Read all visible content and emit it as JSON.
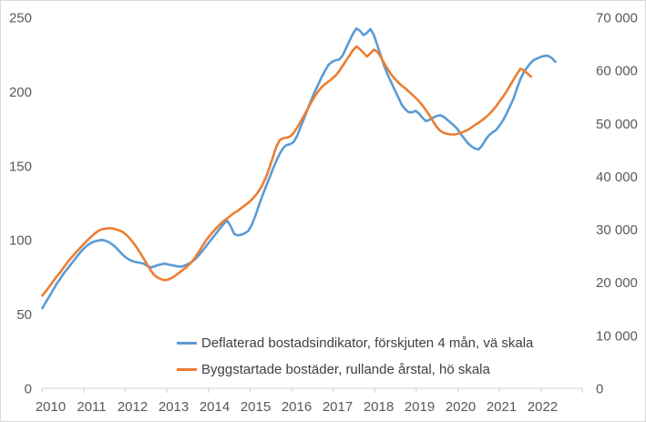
{
  "chart_data": {
    "type": "line",
    "title": "",
    "x_frequency": "monthly",
    "x_axis": {
      "year_labels": [
        "2010",
        "2011",
        "2012",
        "2013",
        "2014",
        "2015",
        "2016",
        "2017",
        "2018",
        "2019",
        "2020",
        "2021",
        "2022"
      ]
    },
    "left_axis": {
      "range": [
        0,
        250
      ],
      "tick_values": [
        0,
        50,
        100,
        150,
        200,
        250
      ],
      "tick_labels": [
        "0",
        "50",
        "100",
        "150",
        "200",
        "250"
      ]
    },
    "right_axis": {
      "range": [
        0,
        70000
      ],
      "tick_values": [
        0,
        10000,
        20000,
        30000,
        40000,
        50000,
        60000,
        70000
      ],
      "tick_labels": [
        "0",
        "10 000",
        "20 000",
        "30 000",
        "40 000",
        "50 000",
        "60 000",
        "70 000"
      ]
    },
    "grid": false,
    "legend_position": "bottom",
    "colors": {
      "series_blue": "#5B9BD5",
      "series_orange": "#ED7D31",
      "axis_text": "#595959",
      "legend_text": "#404040",
      "axis_line": "#D9D9D9",
      "background": "#FFFFFF",
      "border": "#D9D9D9"
    },
    "series": [
      {
        "name": "Deflaterad bostadsindikator, förskjuten 4 mån, vä skala",
        "axis": "left",
        "color": "#5B9BD5",
        "start": "2010-01",
        "end": "2022-04",
        "values": [
          54,
          58,
          62,
          66,
          70,
          73.5,
          77,
          80,
          83,
          86,
          89,
          92,
          94.5,
          96.5,
          98,
          99,
          99.5,
          100,
          99.5,
          98.5,
          97,
          95,
          92.5,
          90,
          88,
          86.5,
          85.5,
          85,
          84.5,
          84,
          82.5,
          81.5,
          82,
          83,
          83.5,
          84,
          83.5,
          83,
          82.5,
          82,
          82,
          83,
          84,
          85.5,
          87.5,
          90,
          93,
          96,
          99,
          102,
          105,
          108,
          111,
          113,
          109,
          104,
          103,
          103.5,
          104.5,
          106,
          110,
          116,
          123,
          129.5,
          135.5,
          141.5,
          147.5,
          153,
          158,
          162,
          164,
          164.5,
          166,
          170,
          176,
          182,
          188,
          194,
          199.5,
          204.5,
          209.5,
          214,
          218,
          220,
          221,
          221.5,
          224,
          229,
          234,
          239,
          242.5,
          241,
          238,
          239.5,
          242,
          238,
          231,
          224,
          217,
          211,
          206,
          201,
          196,
          191,
          188,
          186,
          186,
          187,
          185,
          182,
          180,
          181,
          182.5,
          183.5,
          184,
          183,
          181,
          179,
          177,
          174.5,
          171,
          168,
          165,
          163,
          161.5,
          161,
          163.5,
          167.5,
          170.5,
          172.5,
          174,
          177,
          180.5,
          185,
          190,
          195,
          202,
          208.5,
          213,
          216.5,
          219.5,
          221.5,
          222.5,
          223.5,
          224,
          224,
          222.5,
          220
        ]
      },
      {
        "name": "Byggstartade bostäder, rullande årstal, hö skala",
        "axis": "right",
        "color": "#ED7D31",
        "start": "2010-01",
        "end": "2021-09",
        "values": [
          17500,
          18300,
          19200,
          20100,
          21000,
          21800,
          22700,
          23600,
          24400,
          25200,
          25900,
          26600,
          27300,
          28000,
          28600,
          29200,
          29700,
          30000,
          30100,
          30200,
          30200,
          30000,
          29800,
          29500,
          29000,
          28300,
          27500,
          26600,
          25600,
          24500,
          23400,
          22300,
          21400,
          20900,
          20600,
          20400,
          20500,
          20800,
          21200,
          21700,
          22200,
          22700,
          23300,
          24000,
          24900,
          25900,
          27000,
          28000,
          28800,
          29600,
          30300,
          31000,
          31600,
          32100,
          32600,
          33100,
          33500,
          34000,
          34500,
          35000,
          35600,
          36300,
          37200,
          38300,
          39700,
          41500,
          43500,
          45500,
          46800,
          47200,
          47300,
          47500,
          48200,
          49200,
          50300,
          51500,
          52700,
          53900,
          55000,
          56000,
          56800,
          57400,
          57900,
          58400,
          59000,
          59800,
          60800,
          61800,
          62800,
          63800,
          64500,
          64000,
          63300,
          62600,
          63200,
          63900,
          63500,
          62500,
          61300,
          60200,
          59200,
          58400,
          57700,
          57100,
          56600,
          56000,
          55400,
          54800,
          54100,
          53300,
          52400,
          51400,
          50300,
          49300,
          48600,
          48200,
          48000,
          47900,
          47900,
          48000,
          48200,
          48500,
          48800,
          49200,
          49700,
          50100,
          50600,
          51100,
          51700,
          52400,
          53200,
          54100,
          55000,
          56000,
          57100,
          58200,
          59300,
          60300,
          60000,
          59400,
          58800
        ]
      }
    ]
  }
}
